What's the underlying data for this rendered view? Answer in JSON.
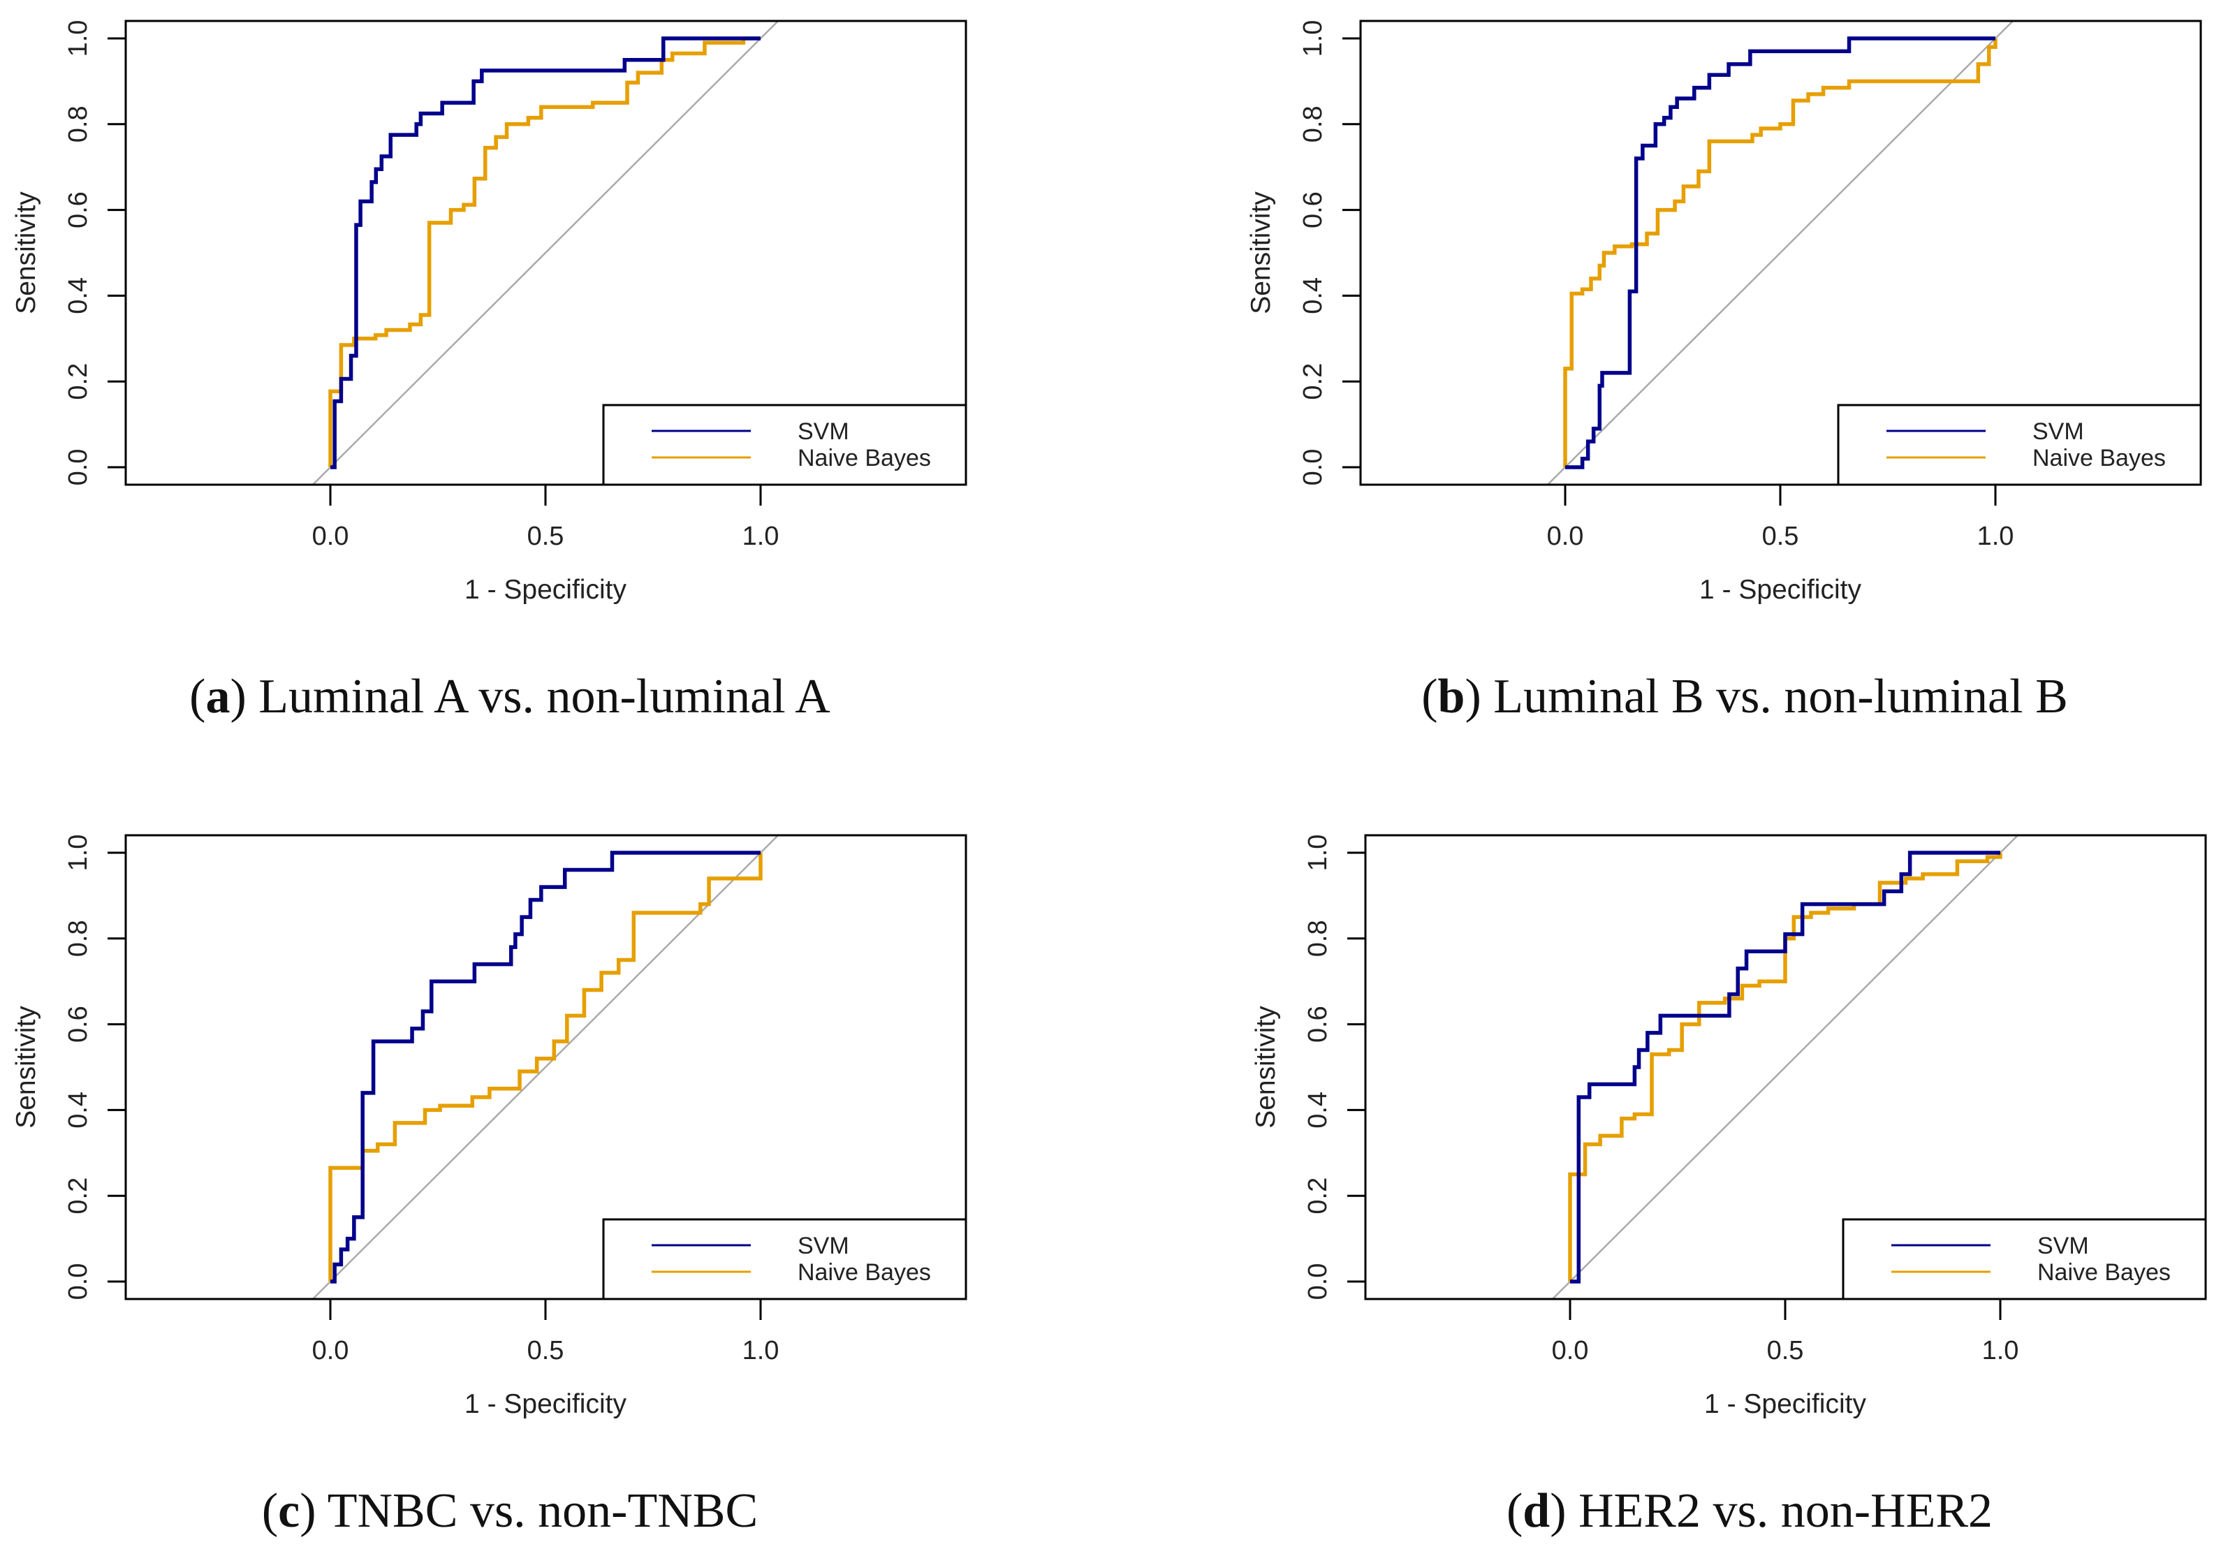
{
  "colors": {
    "svm": "#00008B",
    "nb": "#E69F00",
    "diagonal": "#AAAAAA",
    "axis": "#000000"
  },
  "chart_data": [
    {
      "type": "line",
      "panel": "a",
      "caption_letter": "a",
      "caption_text": " Luminal A vs. non-luminal A",
      "xlabel": "1 - Specificity",
      "ylabel": "Sensitivity",
      "xticks": [
        "0.0",
        "0.5",
        "1.0"
      ],
      "yticks": [
        "0.0",
        "0.2",
        "0.4",
        "0.6",
        "0.8",
        "1.0"
      ],
      "legend": [
        "SVM",
        "Naive Bayes"
      ],
      "legend_position": "bottom-right",
      "series": [
        {
          "name": "SVM",
          "points": [
            [
              0,
              0
            ],
            [
              0.01,
              0.154
            ],
            [
              0.025,
              0.206
            ],
            [
              0.048,
              0.26
            ],
            [
              0.06,
              0.565
            ],
            [
              0.07,
              0.62
            ],
            [
              0.096,
              0.665
            ],
            [
              0.106,
              0.695
            ],
            [
              0.119,
              0.725
            ],
            [
              0.14,
              0.775
            ],
            [
              0.2,
              0.8
            ],
            [
              0.21,
              0.825
            ],
            [
              0.26,
              0.85
            ],
            [
              0.333,
              0.9
            ],
            [
              0.352,
              0.925
            ],
            [
              0.684,
              0.95
            ],
            [
              0.774,
              1.0
            ],
            [
              1.0,
              1.0
            ]
          ]
        },
        {
          "name": "Naive Bayes",
          "points": [
            [
              0,
              0
            ],
            [
              0,
              0.177
            ],
            [
              0.025,
              0.285
            ],
            [
              0.055,
              0.3
            ],
            [
              0.105,
              0.308
            ],
            [
              0.13,
              0.32
            ],
            [
              0.185,
              0.333
            ],
            [
              0.21,
              0.355
            ],
            [
              0.23,
              0.57
            ],
            [
              0.28,
              0.6
            ],
            [
              0.31,
              0.612
            ],
            [
              0.335,
              0.673
            ],
            [
              0.36,
              0.745
            ],
            [
              0.385,
              0.77
            ],
            [
              0.41,
              0.8
            ],
            [
              0.46,
              0.815
            ],
            [
              0.49,
              0.84
            ],
            [
              0.61,
              0.85
            ],
            [
              0.69,
              0.897
            ],
            [
              0.715,
              0.92
            ],
            [
              0.77,
              0.95
            ],
            [
              0.795,
              0.965
            ],
            [
              0.87,
              0.99
            ],
            [
              0.96,
              1.0
            ],
            [
              1.0,
              1.0
            ]
          ]
        }
      ]
    },
    {
      "type": "line",
      "panel": "b",
      "caption_letter": "b",
      "caption_text": " Luminal B vs. non-luminal B",
      "xlabel": "1 - Specificity",
      "ylabel": "Sensitivity",
      "xticks": [
        "0.0",
        "0.5",
        "1.0"
      ],
      "yticks": [
        "0.0",
        "0.2",
        "0.4",
        "0.6",
        "0.8",
        "1.0"
      ],
      "legend": [
        "SVM",
        "Naive Bayes"
      ],
      "legend_position": "bottom-right",
      "series": [
        {
          "name": "SVM",
          "points": [
            [
              0,
              0
            ],
            [
              0.04,
              0.02
            ],
            [
              0.053,
              0.06
            ],
            [
              0.066,
              0.09
            ],
            [
              0.08,
              0.19
            ],
            [
              0.086,
              0.22
            ],
            [
              0.15,
              0.41
            ],
            [
              0.165,
              0.72
            ],
            [
              0.18,
              0.75
            ],
            [
              0.21,
              0.8
            ],
            [
              0.23,
              0.815
            ],
            [
              0.245,
              0.84
            ],
            [
              0.26,
              0.86
            ],
            [
              0.3,
              0.885
            ],
            [
              0.335,
              0.915
            ],
            [
              0.38,
              0.94
            ],
            [
              0.43,
              0.97
            ],
            [
              0.66,
              1.0
            ],
            [
              1.0,
              1.0
            ]
          ]
        },
        {
          "name": "Naive Bayes",
          "points": [
            [
              0,
              0
            ],
            [
              0,
              0.23
            ],
            [
              0.015,
              0.405
            ],
            [
              0.04,
              0.415
            ],
            [
              0.06,
              0.44
            ],
            [
              0.08,
              0.47
            ],
            [
              0.09,
              0.5
            ],
            [
              0.115,
              0.515
            ],
            [
              0.155,
              0.52
            ],
            [
              0.19,
              0.545
            ],
            [
              0.215,
              0.6
            ],
            [
              0.255,
              0.62
            ],
            [
              0.275,
              0.655
            ],
            [
              0.31,
              0.69
            ],
            [
              0.335,
              0.76
            ],
            [
              0.435,
              0.775
            ],
            [
              0.455,
              0.79
            ],
            [
              0.5,
              0.8
            ],
            [
              0.53,
              0.855
            ],
            [
              0.565,
              0.87
            ],
            [
              0.6,
              0.885
            ],
            [
              0.66,
              0.9
            ],
            [
              0.96,
              0.94
            ],
            [
              0.985,
              0.98
            ],
            [
              1.0,
              1.0
            ]
          ]
        }
      ]
    },
    {
      "type": "line",
      "panel": "c",
      "caption_letter": "c",
      "caption_text": " TNBC vs. non-TNBC",
      "xlabel": "1 - Specificity",
      "ylabel": "Sensitivity",
      "xticks": [
        "0.0",
        "0.5",
        "1.0"
      ],
      "yticks": [
        "0.0",
        "0.2",
        "0.4",
        "0.6",
        "0.8",
        "1.0"
      ],
      "legend": [
        "SVM",
        "Naive Bayes"
      ],
      "legend_position": "bottom-right",
      "series": [
        {
          "name": "SVM",
          "points": [
            [
              0,
              0
            ],
            [
              0.01,
              0.04
            ],
            [
              0.025,
              0.075
            ],
            [
              0.04,
              0.1
            ],
            [
              0.055,
              0.15
            ],
            [
              0.075,
              0.44
            ],
            [
              0.1,
              0.56
            ],
            [
              0.19,
              0.59
            ],
            [
              0.215,
              0.63
            ],
            [
              0.235,
              0.7
            ],
            [
              0.335,
              0.74
            ],
            [
              0.42,
              0.78
            ],
            [
              0.43,
              0.81
            ],
            [
              0.445,
              0.85
            ],
            [
              0.465,
              0.89
            ],
            [
              0.49,
              0.92
            ],
            [
              0.545,
              0.96
            ],
            [
              0.655,
              1.0
            ],
            [
              1.0,
              1.0
            ]
          ]
        },
        {
          "name": "Naive Bayes",
          "points": [
            [
              0,
              0
            ],
            [
              0,
              0.265
            ],
            [
              0.075,
              0.305
            ],
            [
              0.11,
              0.32
            ],
            [
              0.15,
              0.37
            ],
            [
              0.22,
              0.4
            ],
            [
              0.255,
              0.41
            ],
            [
              0.33,
              0.43
            ],
            [
              0.37,
              0.45
            ],
            [
              0.44,
              0.49
            ],
            [
              0.48,
              0.52
            ],
            [
              0.52,
              0.56
            ],
            [
              0.55,
              0.62
            ],
            [
              0.59,
              0.68
            ],
            [
              0.63,
              0.72
            ],
            [
              0.67,
              0.75
            ],
            [
              0.705,
              0.86
            ],
            [
              0.86,
              0.88
            ],
            [
              0.88,
              0.94
            ],
            [
              1.0,
              1.0
            ]
          ]
        }
      ]
    },
    {
      "type": "line",
      "panel": "d",
      "caption_letter": "d",
      "caption_text": " HER2 vs. non-HER2",
      "xlabel": "1 - Specificity",
      "ylabel": "Sensitivity",
      "xticks": [
        "0.0",
        "0.5",
        "1.0"
      ],
      "yticks": [
        "0.0",
        "0.2",
        "0.4",
        "0.6",
        "0.8",
        "1.0"
      ],
      "legend": [
        "SVM",
        "Naive Bayes"
      ],
      "legend_position": "bottom-right",
      "series": [
        {
          "name": "SVM",
          "points": [
            [
              0,
              0
            ],
            [
              0.02,
              0.43
            ],
            [
              0.045,
              0.46
            ],
            [
              0.15,
              0.5
            ],
            [
              0.16,
              0.54
            ],
            [
              0.18,
              0.58
            ],
            [
              0.21,
              0.62
            ],
            [
              0.37,
              0.67
            ],
            [
              0.39,
              0.73
            ],
            [
              0.41,
              0.77
            ],
            [
              0.5,
              0.81
            ],
            [
              0.54,
              0.88
            ],
            [
              0.73,
              0.91
            ],
            [
              0.77,
              0.95
            ],
            [
              0.79,
              1.0
            ],
            [
              1.0,
              1.0
            ]
          ]
        },
        {
          "name": "Naive Bayes",
          "points": [
            [
              0,
              0
            ],
            [
              0,
              0.25
            ],
            [
              0.035,
              0.32
            ],
            [
              0.07,
              0.34
            ],
            [
              0.12,
              0.38
            ],
            [
              0.15,
              0.39
            ],
            [
              0.19,
              0.53
            ],
            [
              0.23,
              0.54
            ],
            [
              0.26,
              0.6
            ],
            [
              0.3,
              0.65
            ],
            [
              0.36,
              0.66
            ],
            [
              0.4,
              0.69
            ],
            [
              0.44,
              0.7
            ],
            [
              0.5,
              0.8
            ],
            [
              0.52,
              0.85
            ],
            [
              0.56,
              0.86
            ],
            [
              0.6,
              0.87
            ],
            [
              0.66,
              0.88
            ],
            [
              0.72,
              0.93
            ],
            [
              0.78,
              0.94
            ],
            [
              0.82,
              0.95
            ],
            [
              0.9,
              0.98
            ],
            [
              0.97,
              0.99
            ],
            [
              1.0,
              1.0
            ]
          ]
        }
      ]
    }
  ]
}
